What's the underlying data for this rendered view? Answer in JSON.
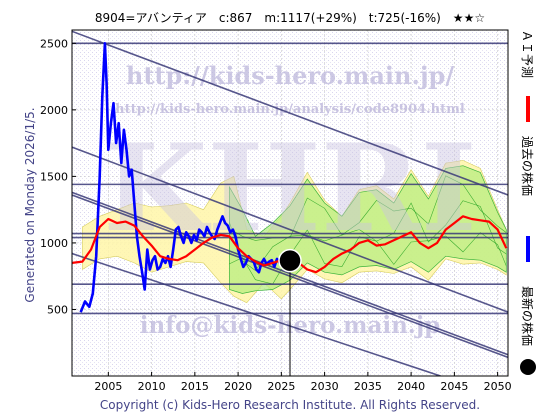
{
  "chart_data": {
    "type": "line",
    "title": "8904=アバンティア　c:867　m:1117(+29%)　t:725(-16%)　★★☆",
    "generated_label": "Generated on Monday 2026/1/5.",
    "copyright": "Copyright (c) Kids-Hero Research Institute. All Rights Reserved.",
    "watermarks": {
      "url": "http://kids-hero.main.jp/",
      "analysis_url": "http://kids-hero.main.jp/analysis/code8904.html",
      "big": "KHRI",
      "email": "info@kids-hero.main.jp"
    },
    "legend": [
      {
        "name": "ＡＩ予測",
        "color": "#ff0000",
        "marker": "line"
      },
      {
        "name": "過去の株価",
        "color": "#0000ff",
        "marker": "line"
      },
      {
        "name": "最新の株価",
        "color": "#000000",
        "marker": "dot"
      }
    ],
    "legend_position": "right-vertical",
    "xlim": [
      2000.8,
      2051.2
    ],
    "ylim": [
      0,
      2600
    ],
    "xticks": [
      2005,
      2010,
      2015,
      2020,
      2025,
      2030,
      2035,
      2040,
      2045,
      2050
    ],
    "yticks": [
      500,
      1000,
      1500,
      2000,
      2500
    ],
    "grid": true,
    "current": {
      "x": 2026.0,
      "y": 867
    },
    "horizontal_lines": [
      2500,
      1440,
      1070,
      1040,
      690,
      470
    ],
    "trend_lines": [
      {
        "x": [
          2000.8,
          2051.2
        ],
        "y": [
          2590,
          1360
        ]
      },
      {
        "x": [
          2000.8,
          2051.2
        ],
        "y": [
          1720,
          480
        ]
      },
      {
        "x": [
          2000.8,
          2051.2
        ],
        "y": [
          1380,
          160
        ]
      },
      {
        "x": [
          2000.8,
          2051.2
        ],
        "y": [
          1360,
          140
        ]
      },
      {
        "x": [
          2000.8,
          2043.4
        ],
        "y": [
          920,
          0
        ]
      }
    ],
    "band_outer": {
      "x": [
        2002,
        2004,
        2006,
        2008,
        2010,
        2012,
        2014,
        2016,
        2018,
        2019.5,
        2021,
        2023,
        2025,
        2026,
        2028,
        2030,
        2032,
        2034,
        2036,
        2038,
        2040,
        2042,
        2044,
        2046,
        2048,
        2050,
        2051
      ],
      "upper": [
        1120,
        1200,
        1250,
        1300,
        1270,
        1280,
        1300,
        1250,
        1450,
        1500,
        1100,
        1050,
        1200,
        1300,
        1530,
        1320,
        1200,
        1400,
        1430,
        1330,
        1550,
        1350,
        1600,
        1620,
        1560,
        1250,
        1100
      ],
      "lower": [
        800,
        880,
        900,
        850,
        780,
        820,
        860,
        850,
        700,
        600,
        550,
        700,
        580,
        650,
        800,
        730,
        700,
        780,
        790,
        770,
        820,
        720,
        880,
        840,
        850,
        800,
        760
      ]
    },
    "band_inner": {
      "x": [
        2019,
        2020.5,
        2022,
        2024,
        2026,
        2028,
        2030,
        2032,
        2034,
        2036,
        2038,
        2040,
        2042,
        2044,
        2046,
        2048,
        2050,
        2051
      ],
      "upper": [
        1420,
        1250,
        1050,
        1150,
        1280,
        1480,
        1300,
        1200,
        1380,
        1400,
        1300,
        1520,
        1330,
        1560,
        1580,
        1530,
        1230,
        1100
      ],
      "lower": [
        650,
        620,
        640,
        650,
        720,
        850,
        780,
        760,
        820,
        830,
        800,
        860,
        780,
        900,
        880,
        870,
        820,
        780
      ]
    },
    "series": [
      {
        "name": "過去の株価",
        "color": "#0000ff",
        "x": [
          2001.8,
          2002.3,
          2002.8,
          2003.2,
          2003.6,
          2004.0,
          2004.3,
          2004.6,
          2004.8,
          2005.0,
          2005.3,
          2005.6,
          2005.9,
          2006.2,
          2006.5,
          2006.8,
          2007.1,
          2007.4,
          2007.7,
          2008.0,
          2008.3,
          2008.6,
          2008.9,
          2009.2,
          2009.5,
          2009.8,
          2010.1,
          2010.4,
          2010.7,
          2011.0,
          2011.3,
          2011.6,
          2011.9,
          2012.2,
          2012.5,
          2012.8,
          2013.1,
          2013.4,
          2013.7,
          2014.0,
          2014.3,
          2014.6,
          2014.9,
          2015.2,
          2015.5,
          2015.8,
          2016.1,
          2016.4,
          2016.7,
          2017.0,
          2017.3,
          2017.6,
          2017.9,
          2018.2,
          2018.5,
          2018.8,
          2019.1,
          2019.4,
          2019.7,
          2020.0,
          2020.3,
          2020.6,
          2020.9,
          2021.2,
          2021.5,
          2021.8,
          2022.1,
          2022.4,
          2022.7,
          2023.0,
          2023.3,
          2023.6,
          2023.9,
          2024.2,
          2024.5,
          2024.8,
          2025.1,
          2025.4,
          2025.7,
          2026.0
        ],
        "y": [
          480,
          560,
          520,
          620,
          900,
          1500,
          2100,
          2500,
          2200,
          1700,
          1900,
          2050,
          1750,
          1900,
          1600,
          1850,
          1700,
          1500,
          1550,
          1300,
          1050,
          900,
          780,
          650,
          950,
          800,
          870,
          900,
          800,
          820,
          880,
          850,
          900,
          820,
          950,
          1100,
          1120,
          1050,
          1000,
          1080,
          1050,
          1000,
          1060,
          1020,
          1100,
          1080,
          1050,
          1120,
          1080,
          1050,
          1030,
          1100,
          1150,
          1200,
          1150,
          1130,
          1080,
          1100,
          1050,
          950,
          880,
          820,
          850,
          900,
          880,
          860,
          800,
          780,
          850,
          880,
          840,
          860,
          870,
          820,
          880,
          850,
          860,
          820,
          850,
          867
        ]
      },
      {
        "name": "ＡＩ予測",
        "color": "#ff0000",
        "x": [
          2000.8,
          2002,
          2003,
          2004,
          2005,
          2006,
          2007,
          2008,
          2009,
          2010,
          2011,
          2012,
          2013,
          2014,
          2015,
          2016,
          2017,
          2018,
          2019,
          2020,
          2021,
          2022,
          2023,
          2024,
          2025,
          2026,
          2027,
          2028,
          2029,
          2030,
          2031,
          2032,
          2033,
          2034,
          2035,
          2036,
          2037,
          2038,
          2039,
          2040,
          2041,
          2042,
          2043,
          2044,
          2045,
          2046,
          2047,
          2048,
          2049,
          2050,
          2051
        ],
        "y": [
          850,
          860,
          950,
          1120,
          1180,
          1150,
          1160,
          1130,
          1050,
          980,
          900,
          880,
          870,
          900,
          950,
          1000,
          1040,
          1060,
          1050,
          960,
          900,
          860,
          830,
          850,
          870,
          900,
          850,
          800,
          780,
          820,
          880,
          920,
          950,
          1000,
          1020,
          980,
          990,
          1020,
          1050,
          1080,
          1000,
          960,
          1000,
          1100,
          1150,
          1200,
          1180,
          1170,
          1160,
          1100,
          960
        ]
      }
    ]
  }
}
